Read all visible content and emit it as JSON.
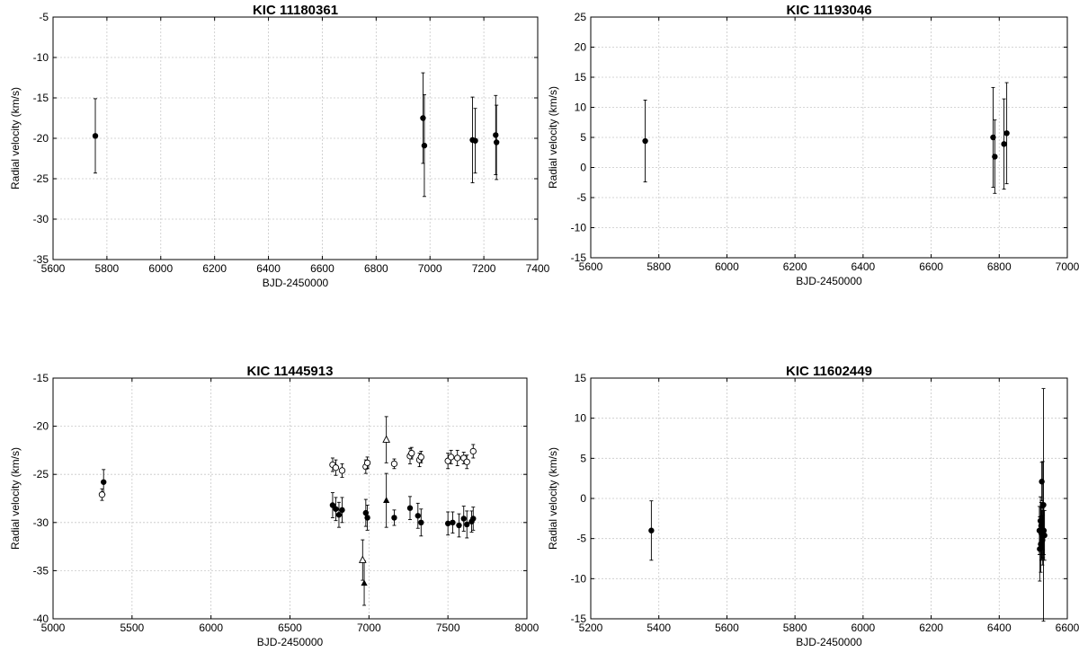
{
  "chart_data": [
    {
      "type": "scatter",
      "title": "KIC 11180361",
      "xlabel": "BJD-2450000",
      "ylabel": "Radial velocity (km/s)",
      "xlim": [
        5600,
        7400
      ],
      "ylim": [
        -35,
        -5
      ],
      "xticks": [
        5600,
        5800,
        6000,
        6200,
        6400,
        6600,
        6800,
        7000,
        7200,
        7400
      ],
      "yticks": [
        -35,
        -30,
        -25,
        -20,
        -15,
        -10,
        -5
      ],
      "grid": true,
      "series": [
        {
          "marker": "filled-circle",
          "points": [
            {
              "x": 5757,
              "y": -19.7,
              "err": 4.6
            },
            {
              "x": 6974,
              "y": -17.5,
              "err": 5.6
            },
            {
              "x": 6979,
              "y": -20.9,
              "err": 6.3
            },
            {
              "x": 7158,
              "y": -20.2,
              "err": 5.3
            },
            {
              "x": 7168,
              "y": -20.3,
              "err": 4.0
            },
            {
              "x": 7244,
              "y": -19.6,
              "err": 4.9
            },
            {
              "x": 7247,
              "y": -20.5,
              "err": 4.6
            }
          ]
        }
      ]
    },
    {
      "type": "scatter",
      "title": "KIC 11193046",
      "xlabel": "BJD-2450000",
      "ylabel": "Radial velocity (km/s)",
      "xlim": [
        5600,
        7000
      ],
      "ylim": [
        -15,
        25
      ],
      "xticks": [
        5600,
        5800,
        6000,
        6200,
        6400,
        6600,
        6800,
        7000
      ],
      "yticks": [
        -15,
        -10,
        -5,
        0,
        5,
        10,
        15,
        20,
        25
      ],
      "grid": true,
      "series": [
        {
          "marker": "filled-circle",
          "points": [
            {
              "x": 5760,
              "y": 4.4,
              "err": 6.8
            },
            {
              "x": 6782,
              "y": 5.0,
              "err": 8.3
            },
            {
              "x": 6787,
              "y": 1.8,
              "err": 6.1
            },
            {
              "x": 6814,
              "y": 3.9,
              "err": 7.5
            },
            {
              "x": 6822,
              "y": 5.7,
              "err": 8.4
            }
          ]
        }
      ]
    },
    {
      "type": "scatter",
      "title": "KIC 11445913",
      "xlabel": "BJD-2450000",
      "ylabel": "Radial velocity (km/s)",
      "xlim": [
        5000,
        8000
      ],
      "ylim": [
        -40,
        -15
      ],
      "xticks": [
        5000,
        5500,
        6000,
        6500,
        7000,
        7500,
        8000
      ],
      "yticks": [
        -40,
        -35,
        -30,
        -25,
        -20,
        -15
      ],
      "grid": true,
      "series": [
        {
          "marker": "filled-circle",
          "points": [
            {
              "x": 5320,
              "y": -25.8,
              "err": 1.3
            },
            {
              "x": 6770,
              "y": -28.2,
              "err": 1.3
            },
            {
              "x": 6790,
              "y": -28.6,
              "err": 1.2
            },
            {
              "x": 6810,
              "y": -29.2,
              "err": 1.3
            },
            {
              "x": 6830,
              "y": -28.7,
              "err": 1.3
            },
            {
              "x": 6980,
              "y": -29.0,
              "err": 1.4
            },
            {
              "x": 6990,
              "y": -29.5,
              "err": 1.3
            },
            {
              "x": 7160,
              "y": -29.5,
              "err": 0.8
            },
            {
              "x": 7260,
              "y": -28.5,
              "err": 1.2
            },
            {
              "x": 7310,
              "y": -29.3,
              "err": 1.3
            },
            {
              "x": 7330,
              "y": -30.0,
              "err": 1.4
            },
            {
              "x": 7500,
              "y": -30.1,
              "err": 1.2
            },
            {
              "x": 7530,
              "y": -30.0,
              "err": 1.1
            },
            {
              "x": 7570,
              "y": -30.3,
              "err": 1.2
            },
            {
              "x": 7600,
              "y": -29.6,
              "err": 1.3
            },
            {
              "x": 7620,
              "y": -30.2,
              "err": 1.4
            },
            {
              "x": 7650,
              "y": -29.9,
              "err": 1.1
            },
            {
              "x": 7660,
              "y": -29.6,
              "err": 1.2
            }
          ]
        },
        {
          "marker": "open-circle",
          "points": [
            {
              "x": 5310,
              "y": -27.1,
              "err": 0.6
            },
            {
              "x": 6770,
              "y": -24.0,
              "err": 0.7
            },
            {
              "x": 6790,
              "y": -24.3,
              "err": 0.8
            },
            {
              "x": 6830,
              "y": -24.6,
              "err": 0.7
            },
            {
              "x": 6980,
              "y": -24.2,
              "err": 0.7
            },
            {
              "x": 6990,
              "y": -23.8,
              "err": 0.6
            },
            {
              "x": 7160,
              "y": -23.9,
              "err": 0.5
            },
            {
              "x": 7260,
              "y": -23.1,
              "err": 0.8
            },
            {
              "x": 7270,
              "y": -22.8,
              "err": 0.6
            },
            {
              "x": 7320,
              "y": -23.5,
              "err": 0.7
            },
            {
              "x": 7330,
              "y": -23.2,
              "err": 0.6
            },
            {
              "x": 7500,
              "y": -23.6,
              "err": 0.8
            },
            {
              "x": 7520,
              "y": -23.2,
              "err": 0.7
            },
            {
              "x": 7560,
              "y": -23.3,
              "err": 0.8
            },
            {
              "x": 7600,
              "y": -23.3,
              "err": 0.6
            },
            {
              "x": 7620,
              "y": -23.7,
              "err": 0.7
            },
            {
              "x": 7660,
              "y": -22.6,
              "err": 0.7
            }
          ]
        },
        {
          "marker": "filled-triangle",
          "points": [
            {
              "x": 6970,
              "y": -36.3,
              "err": 2.3
            },
            {
              "x": 7110,
              "y": -27.7,
              "err": 2.8
            }
          ]
        },
        {
          "marker": "open-triangle",
          "points": [
            {
              "x": 6960,
              "y": -33.9,
              "err": 2.1
            },
            {
              "x": 7110,
              "y": -21.4,
              "err": 2.4
            }
          ]
        }
      ]
    },
    {
      "type": "scatter",
      "title": "KIC 11602449",
      "xlabel": "BJD-2450000",
      "ylabel": "Radial velocity (km/s)",
      "xlim": [
        5200,
        6600
      ],
      "ylim": [
        -15,
        15
      ],
      "xticks": [
        5200,
        5400,
        5600,
        5800,
        6000,
        6200,
        6400,
        6600
      ],
      "yticks": [
        -15,
        -10,
        -5,
        0,
        5,
        10,
        15
      ],
      "grid": true,
      "series": [
        {
          "marker": "filled-circle",
          "points": [
            {
              "x": 5378,
              "y": -4.0,
              "err": 3.7
            },
            {
              "x": 6518,
              "y": -4.0,
              "err": 3.0
            },
            {
              "x": 6519,
              "y": -6.3,
              "err": 4.0
            },
            {
              "x": 6521,
              "y": -2.8,
              "err": 3.0
            },
            {
              "x": 6522,
              "y": -5.7,
              "err": 3.5
            },
            {
              "x": 6523,
              "y": -3.4,
              "err": 2.9
            },
            {
              "x": 6524,
              "y": -4.4,
              "err": 3.3
            },
            {
              "x": 6525,
              "y": 2.1,
              "err": 2.4
            },
            {
              "x": 6526,
              "y": -4.5,
              "err": 3.0
            },
            {
              "x": 6527,
              "y": -5.2,
              "err": 3.1
            },
            {
              "x": 6528,
              "y": -0.9,
              "err": 5.5
            },
            {
              "x": 6529,
              "y": -4.2,
              "err": 3.2
            },
            {
              "x": 6530,
              "y": -0.8,
              "err": 14.5
            },
            {
              "x": 6531,
              "y": -4.0,
              "err": 3.0
            },
            {
              "x": 6533,
              "y": -4.6,
              "err": 3.1
            }
          ]
        }
      ]
    }
  ]
}
